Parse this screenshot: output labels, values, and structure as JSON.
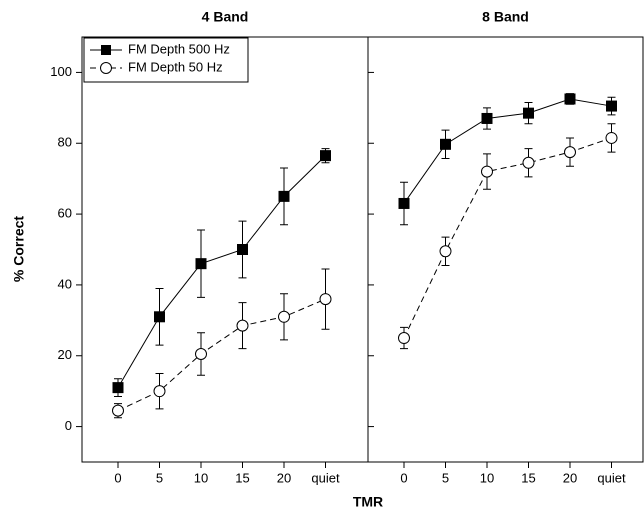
{
  "xlabel": "TMR",
  "ylabel": "% Correct",
  "chart_data": [
    {
      "type": "line",
      "title": "4 Band",
      "categories": [
        "0",
        "5",
        "10",
        "15",
        "20",
        "quiet"
      ],
      "ylim": [
        -10,
        110
      ],
      "yticks": [
        0,
        20,
        40,
        60,
        80,
        100
      ],
      "legend": "top-left",
      "series": [
        {
          "name": "FM Depth 500 Hz",
          "color": "#000000",
          "marker": "square",
          "dash": false,
          "values": [
            11,
            31,
            46,
            50,
            65,
            76.5
          ],
          "errors": [
            2.5,
            8,
            9.5,
            8,
            8,
            2
          ]
        },
        {
          "name": "FM Depth 50 Hz",
          "color": "#000000",
          "marker": "circle",
          "dash": true,
          "values": [
            4.5,
            10,
            20.5,
            28.5,
            31,
            36
          ],
          "errors": [
            2,
            5,
            6,
            6.5,
            6.5,
            8.5
          ]
        }
      ]
    },
    {
      "type": "line",
      "title": "8 Band",
      "categories": [
        "0",
        "5",
        "10",
        "15",
        "20",
        "quiet"
      ],
      "ylim": [
        -10,
        110
      ],
      "yticks": [
        0,
        20,
        40,
        60,
        80,
        100
      ],
      "series": [
        {
          "color": "#000000",
          "marker": "square",
          "dash": false,
          "values": [
            63,
            79.7,
            87,
            88.5,
            92.5,
            90.5
          ],
          "errors": [
            6,
            4,
            3,
            3,
            1.5,
            2.5
          ]
        },
        {
          "color": "#000000",
          "marker": "circle",
          "dash": true,
          "values": [
            25,
            49.5,
            72,
            74.5,
            77.5,
            81.5
          ],
          "errors": [
            3,
            4,
            5,
            4,
            4,
            4
          ]
        }
      ]
    }
  ]
}
